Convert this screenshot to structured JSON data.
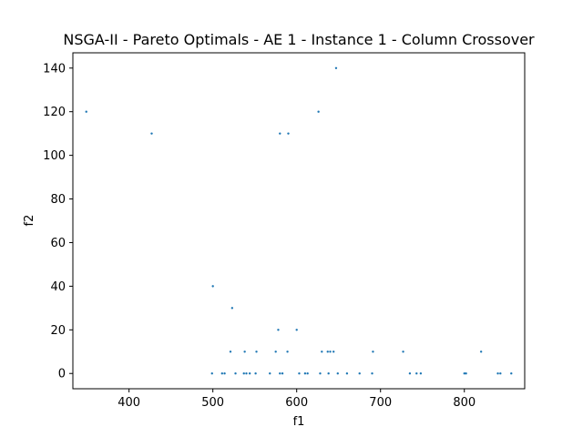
{
  "chart_data": {
    "type": "scatter",
    "title": "NSGA-II - Pareto Optimals - AE 1 - Instance 1 - Column Crossover",
    "xlabel": "f1",
    "ylabel": "f2",
    "xlim": [
      333,
      872
    ],
    "ylim": [
      -7,
      147
    ],
    "xticks": [
      400,
      500,
      600,
      700,
      800
    ],
    "yticks": [
      0,
      20,
      40,
      60,
      80,
      100,
      120,
      140
    ],
    "grid": false,
    "marker_color": "#1f77b4",
    "series": [
      {
        "x": [
          349,
          427,
          647,
          626,
          580,
          590,
          500,
          523,
          578,
          600,
          521,
          538,
          552,
          575,
          589,
          630,
          637,
          640,
          644,
          691,
          727,
          820,
          499,
          511,
          514,
          527,
          537,
          540,
          544,
          551,
          568,
          580,
          583,
          603,
          610,
          613,
          628,
          638,
          649,
          660,
          675,
          690,
          735,
          743,
          748,
          800,
          802,
          840,
          843,
          856
        ],
        "y": [
          120,
          110,
          140,
          120,
          110,
          110,
          40,
          30,
          20,
          20,
          10,
          10,
          10,
          10,
          10,
          10,
          10,
          10,
          10,
          10,
          10,
          10,
          0,
          0,
          0,
          0,
          0,
          0,
          0,
          0,
          0,
          0,
          0,
          0,
          0,
          0,
          0,
          0,
          0,
          0,
          0,
          0,
          0,
          0,
          0,
          0,
          0,
          0,
          0,
          0
        ]
      }
    ]
  }
}
